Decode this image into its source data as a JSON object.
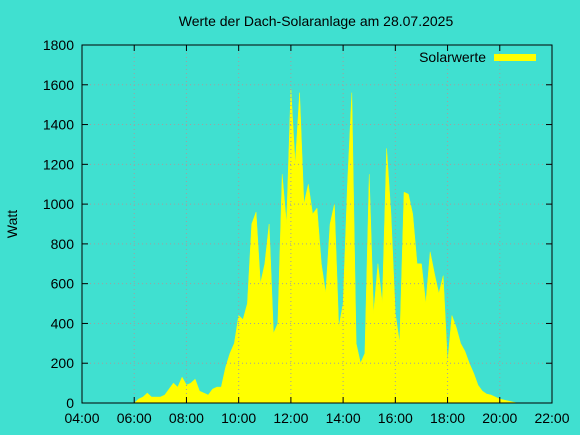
{
  "chart_data": {
    "type": "area",
    "title": "Werte der Dach-Solaranlage am 28.07.2025",
    "ylabel": "Watt",
    "x": [
      "06:00",
      "06:10",
      "06:20",
      "06:30",
      "06:40",
      "06:50",
      "07:00",
      "07:10",
      "07:20",
      "07:30",
      "07:40",
      "07:50",
      "08:00",
      "08:10",
      "08:20",
      "08:30",
      "08:40",
      "08:50",
      "09:00",
      "09:10",
      "09:20",
      "09:30",
      "09:40",
      "09:50",
      "10:00",
      "10:10",
      "10:20",
      "10:30",
      "10:40",
      "10:50",
      "11:00",
      "11:10",
      "11:20",
      "11:30",
      "11:40",
      "11:50",
      "12:00",
      "12:10",
      "12:20",
      "12:30",
      "12:40",
      "12:50",
      "13:00",
      "13:10",
      "13:20",
      "13:30",
      "13:40",
      "13:50",
      "14:00",
      "14:10",
      "14:20",
      "14:30",
      "14:40",
      "14:50",
      "15:00",
      "15:10",
      "15:20",
      "15:30",
      "15:40",
      "15:50",
      "16:00",
      "16:10",
      "16:20",
      "16:30",
      "16:40",
      "16:50",
      "17:00",
      "17:10",
      "17:20",
      "17:30",
      "17:40",
      "17:50",
      "18:00",
      "18:10",
      "18:20",
      "18:30",
      "18:40",
      "18:50",
      "19:00",
      "19:10",
      "19:20",
      "19:30",
      "19:40",
      "19:50",
      "20:00",
      "20:10",
      "20:20",
      "20:30",
      "20:40"
    ],
    "series": [
      {
        "name": "Solarwerte",
        "color": "#ffff00",
        "values": [
          0,
          20,
          30,
          50,
          30,
          30,
          30,
          40,
          70,
          100,
          80,
          130,
          90,
          100,
          120,
          60,
          50,
          40,
          70,
          80,
          80,
          180,
          250,
          300,
          440,
          420,
          500,
          900,
          960,
          600,
          700,
          900,
          350,
          400,
          1150,
          900,
          1580,
          1200,
          1560,
          1000,
          1100,
          950,
          980,
          700,
          550,
          900,
          1000,
          380,
          500,
          1100,
          1560,
          300,
          200,
          250,
          1150,
          450,
          700,
          500,
          1280,
          950,
          450,
          300,
          1060,
          1050,
          950,
          700,
          700,
          500,
          760,
          650,
          550,
          640,
          200,
          440,
          380,
          300,
          260,
          200,
          150,
          90,
          60,
          45,
          40,
          30,
          20,
          15,
          10,
          5,
          0
        ]
      }
    ],
    "xlim": [
      "04:00",
      "22:00"
    ],
    "xticks": [
      "04:00",
      "06:00",
      "08:00",
      "10:00",
      "12:00",
      "14:00",
      "16:00",
      "18:00",
      "20:00",
      "22:00"
    ],
    "ylim": [
      0,
      1800
    ],
    "yticks": [
      0,
      200,
      400,
      600,
      800,
      1000,
      1200,
      1400,
      1600,
      1800
    ],
    "grid": true,
    "legend": "top-right"
  }
}
